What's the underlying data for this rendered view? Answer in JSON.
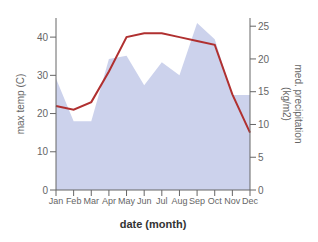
{
  "chart_data": {
    "type": "line",
    "xlabel": "date (month)",
    "ylabel": "max temp (C)",
    "y2label": "med. precipitation\n(kg/m2)",
    "categories": [
      "Jan",
      "Feb",
      "Mar",
      "Apr",
      "May",
      "Jun",
      "Jul",
      "Aug",
      "Sep",
      "Oct",
      "Nov",
      "Dec"
    ],
    "series": [
      {
        "type": "area",
        "color": "#aab4df",
        "axis": "y2",
        "values": [
          17,
          10.5,
          10.5,
          20,
          20.5,
          16,
          19.5,
          17.5,
          25.5,
          23,
          14.5,
          14.5
        ]
      },
      {
        "type": "line",
        "color": "#b03030",
        "values": [
          22,
          21,
          23,
          31,
          40,
          41,
          41,
          40,
          39,
          38,
          25,
          15
        ]
      }
    ],
    "ylim": [
      0,
      45
    ],
    "yticks": [
      0,
      10,
      20,
      30,
      40
    ],
    "y2lim": [
      0,
      26.25
    ],
    "y2ticks": [
      0,
      5,
      10,
      15,
      20,
      25
    ],
    "grid": false
  }
}
